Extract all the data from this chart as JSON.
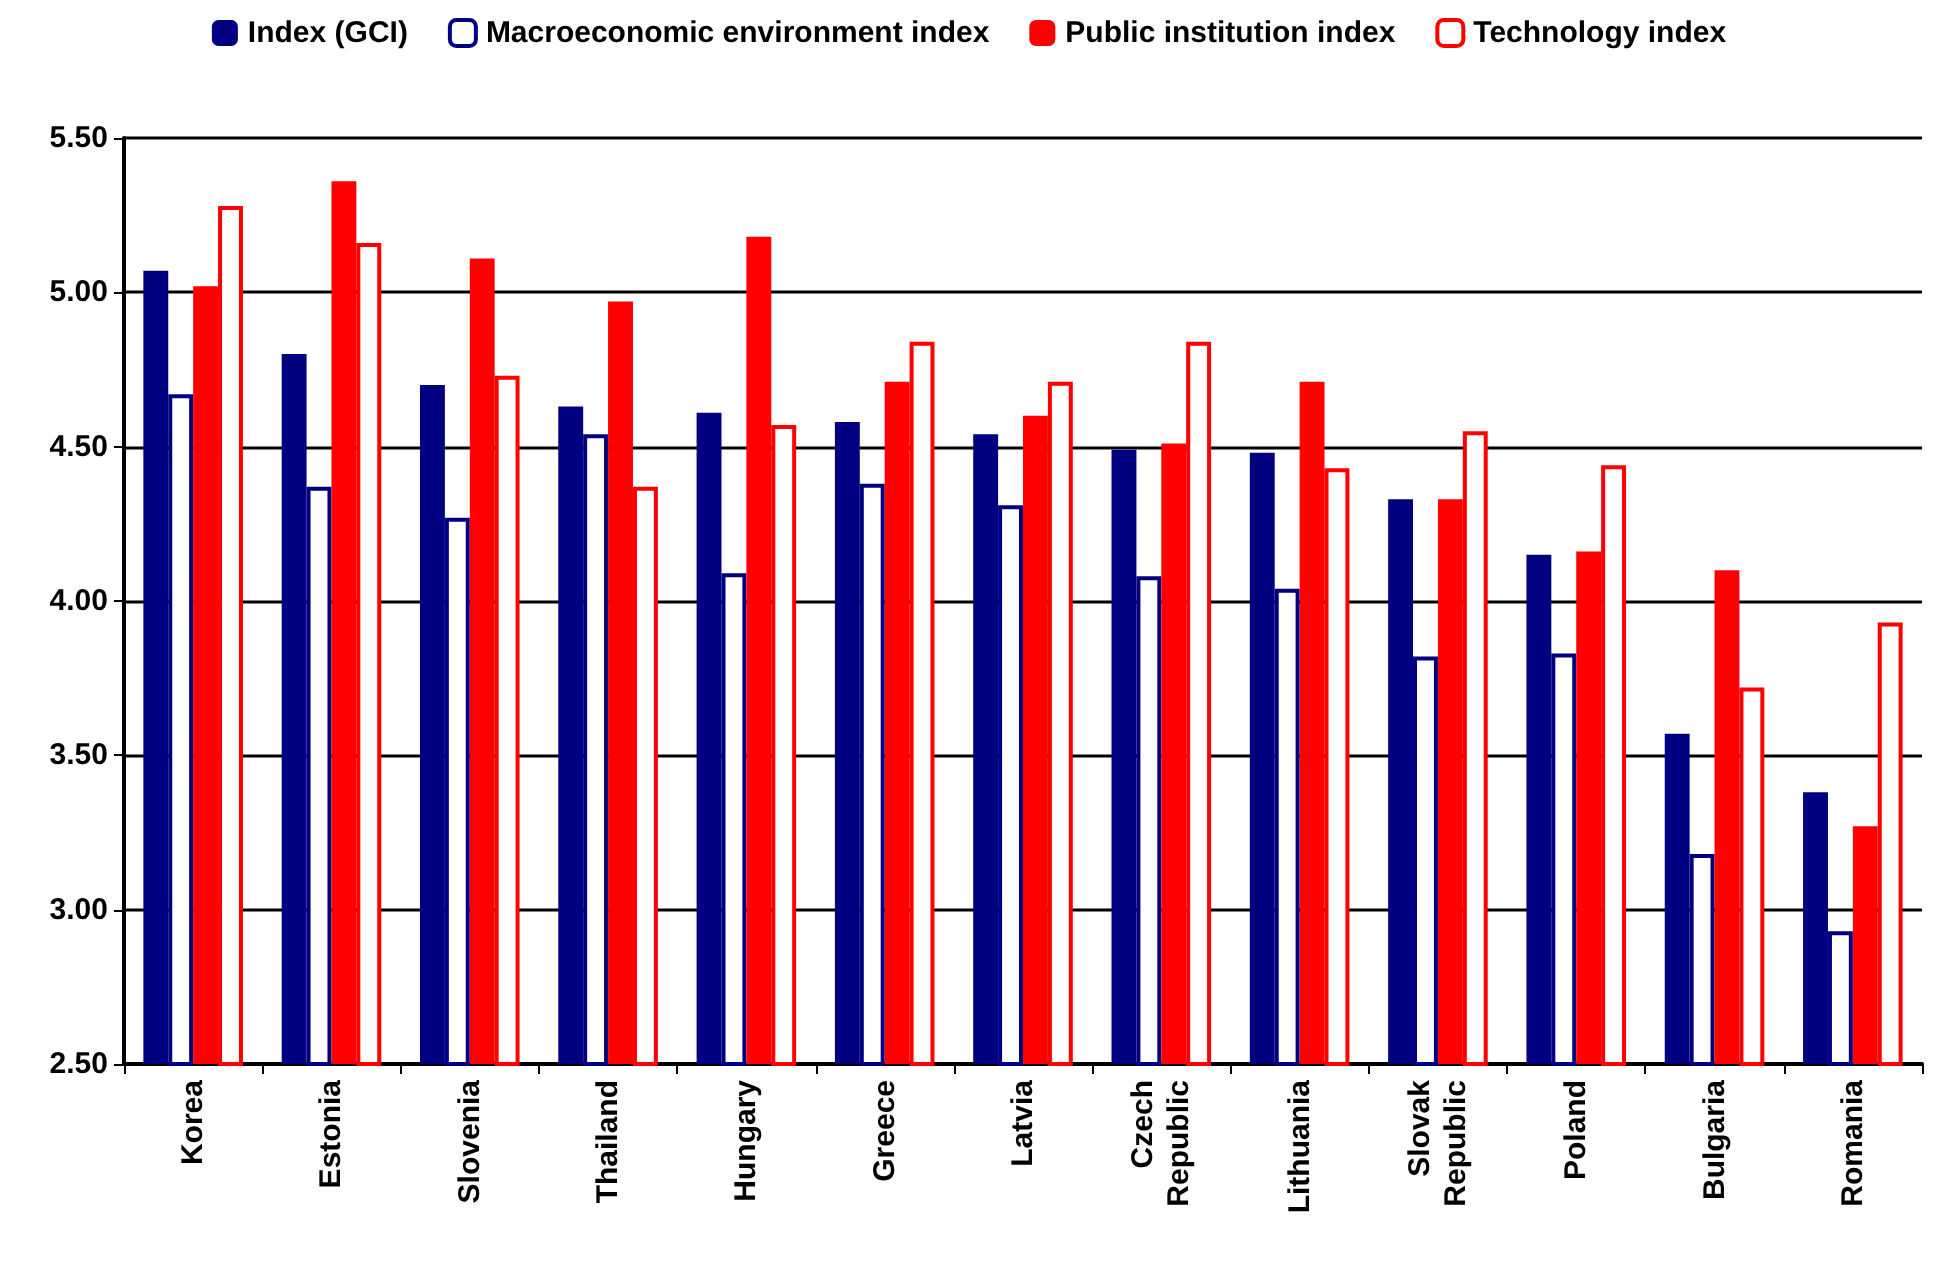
{
  "chart_data": {
    "type": "bar",
    "categories": [
      "Korea",
      "Estonia",
      "Slovenia",
      "Thailand",
      "Hungary",
      "Greece",
      "Latvia",
      "Czech Republic",
      "Lithuania",
      "Slovak Republic",
      "Poland",
      "Bulgaria",
      "Romania"
    ],
    "series": [
      {
        "name": "Index (GCI)",
        "color": "#000080",
        "values": [
          5.07,
          4.8,
          4.7,
          4.63,
          4.61,
          4.58,
          4.54,
          4.49,
          4.48,
          4.33,
          4.15,
          3.57,
          3.38
        ]
      },
      {
        "name": "Macroeconomic environment index",
        "color": "#000080",
        "values": [
          4.67,
          4.37,
          4.27,
          4.54,
          4.09,
          4.38,
          4.31,
          4.08,
          4.04,
          3.82,
          3.83,
          3.18,
          2.93
        ]
      },
      {
        "name": "Public institution index",
        "color": "#ff0000",
        "values": [
          5.02,
          5.36,
          5.11,
          4.97,
          5.18,
          4.71,
          4.6,
          4.51,
          4.71,
          4.33,
          4.16,
          4.1,
          3.27
        ]
      },
      {
        "name": "Technology index",
        "color": "#ff0000",
        "values": [
          5.28,
          5.16,
          4.73,
          4.37,
          4.57,
          4.84,
          4.71,
          4.84,
          4.43,
          4.55,
          4.44,
          3.72,
          3.93
        ]
      }
    ],
    "ylim": [
      2.5,
      5.5
    ],
    "yticks": [
      {
        "value": 2.5,
        "label": "2.50"
      },
      {
        "value": 3,
        "label": "3.00"
      },
      {
        "value": 3.5,
        "label": "3.50"
      },
      {
        "value": 4,
        "label": "4.00"
      },
      {
        "value": 4.5,
        "label": "4.50"
      },
      {
        "value": 5,
        "label": "5.00"
      },
      {
        "value": 5.5,
        "label": "5.50"
      }
    ],
    "grid": "y",
    "legend": "top"
  }
}
